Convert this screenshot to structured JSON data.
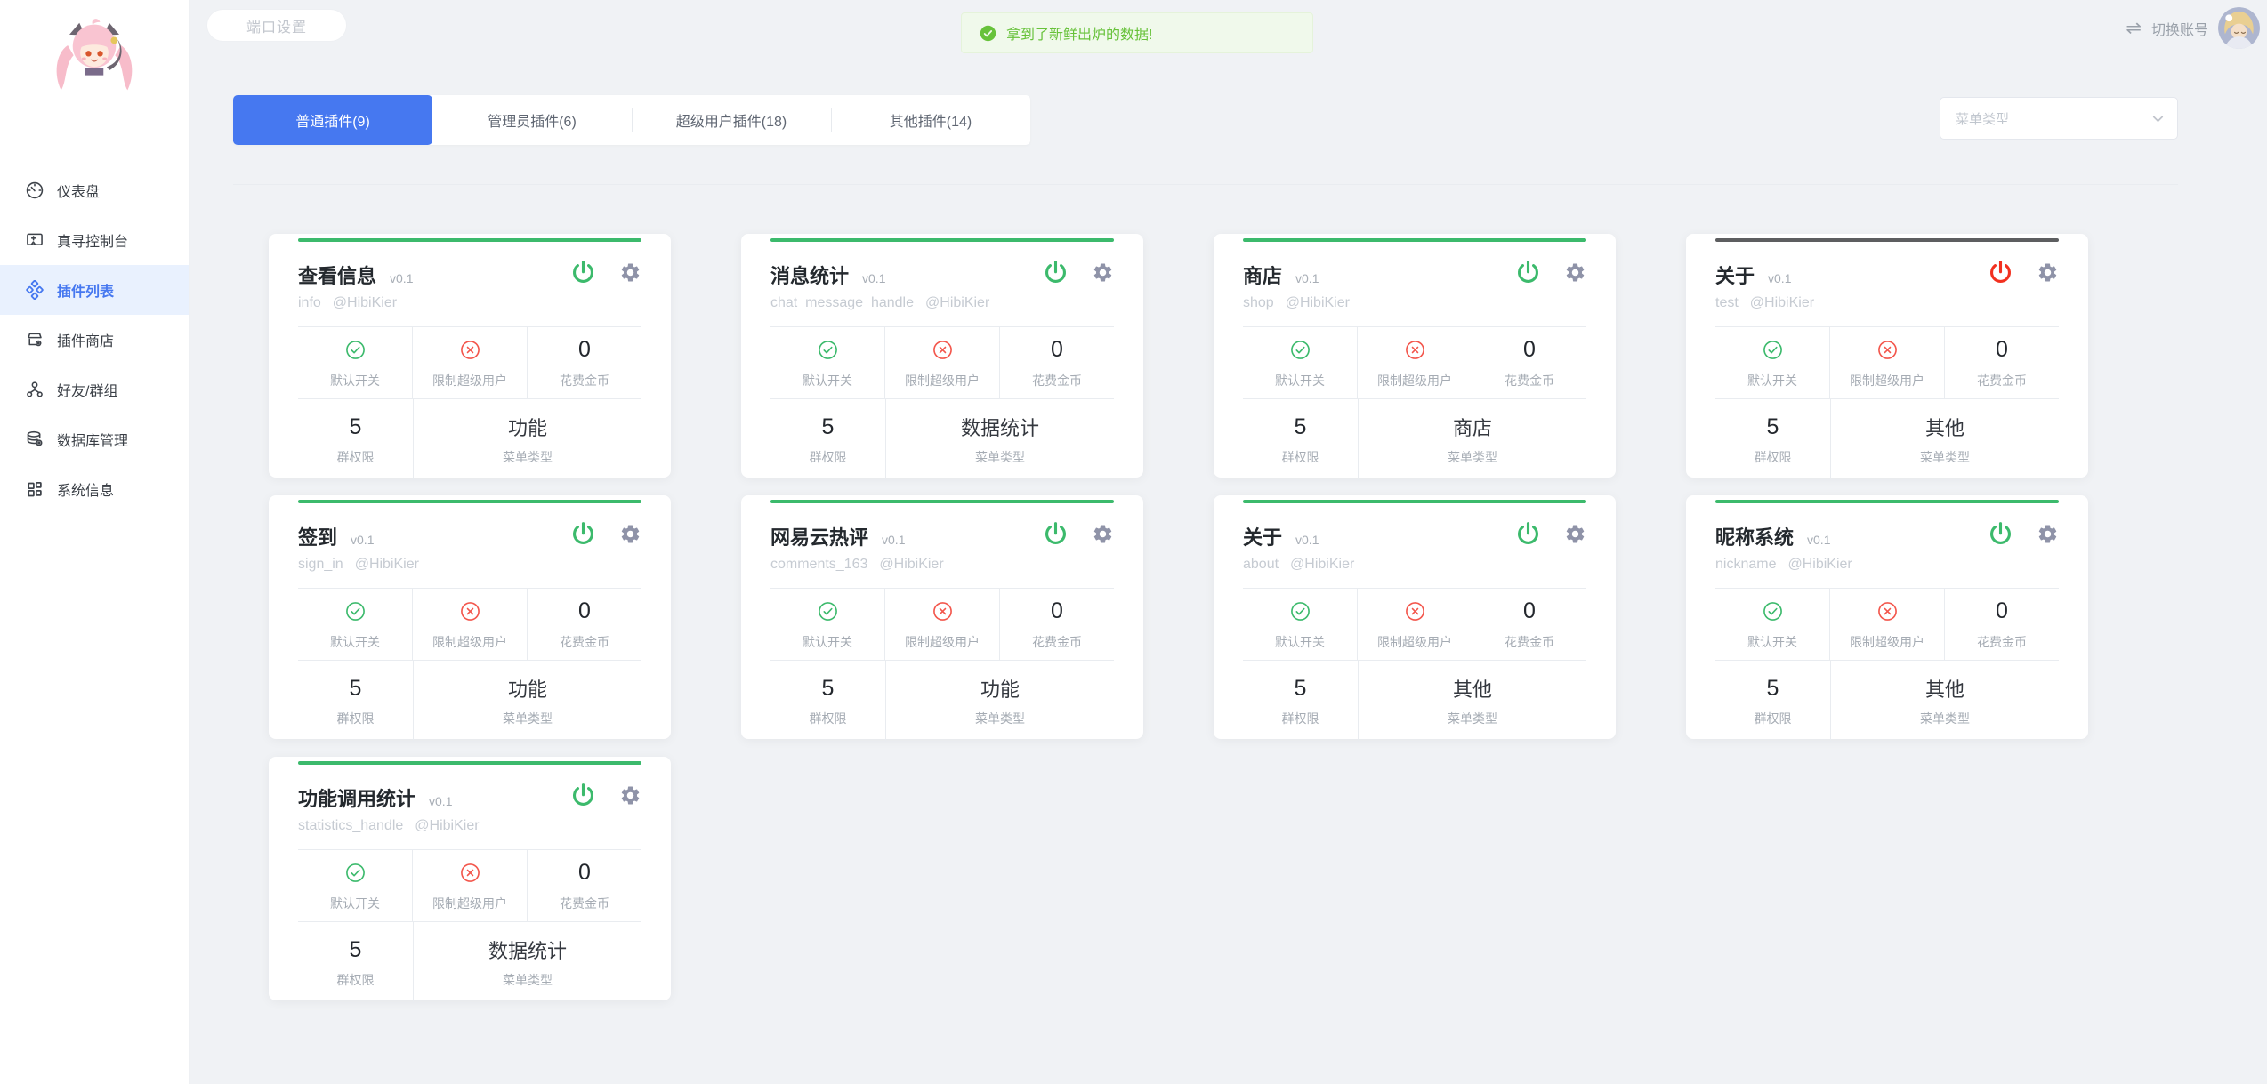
{
  "colors": {
    "primary": "#4678f0",
    "success_power": "#3cba6c",
    "danger_power": "#f2301f",
    "toast_green": "#67c23a",
    "dark_accent": "#5d5e60"
  },
  "sidebar": {
    "items": [
      {
        "key": "dashboard",
        "icon": "gauge-icon",
        "label": "仪表盘",
        "active": false
      },
      {
        "key": "zhenxun-console",
        "icon": "console-icon",
        "label": "真寻控制台",
        "active": false
      },
      {
        "key": "plugin-list",
        "icon": "plugins-icon",
        "label": "插件列表",
        "active": true
      },
      {
        "key": "plugin-store",
        "icon": "store-icon",
        "label": "插件商店",
        "active": false
      },
      {
        "key": "friends-groups",
        "icon": "friends-groups-icon",
        "label": "好友/群组",
        "active": false
      },
      {
        "key": "database-manage",
        "icon": "database-icon",
        "label": "数据库管理",
        "active": false
      },
      {
        "key": "system-info",
        "icon": "grid-icon",
        "label": "系统信息",
        "active": false
      }
    ]
  },
  "topbar": {
    "port_button_label": "端口设置",
    "toast_message": "拿到了新鲜出炉的数据!",
    "switch_account_label": "切换账号"
  },
  "tabs": [
    {
      "key": "normal",
      "label": "普通插件(9)",
      "active": true
    },
    {
      "key": "admin",
      "label": "管理员插件(6)",
      "active": false
    },
    {
      "key": "superuser",
      "label": "超级用户插件(18)",
      "active": false
    },
    {
      "key": "other",
      "label": "其他插件(14)",
      "active": false
    }
  ],
  "filter": {
    "menu_type_placeholder": "菜单类型"
  },
  "card_labels": {
    "default_switch": "默认开关",
    "limit_superuser": "限制超级用户",
    "cost_gold": "花费金币",
    "group_permission": "群权限",
    "menu_type": "菜单类型"
  },
  "plugins": [
    {
      "title": "查看信息",
      "version": "v0.1",
      "module": "info",
      "author": "@HibiKier",
      "enabled": true,
      "accent": "green",
      "cost_gold": "0",
      "group_permission": "5",
      "menu_type": "功能"
    },
    {
      "title": "消息统计",
      "version": "v0.1",
      "module": "chat_message_handle",
      "author": "@HibiKier",
      "enabled": true,
      "accent": "green",
      "cost_gold": "0",
      "group_permission": "5",
      "menu_type": "数据统计"
    },
    {
      "title": "商店",
      "version": "v0.1",
      "module": "shop",
      "author": "@HibiKier",
      "enabled": true,
      "accent": "green",
      "cost_gold": "0",
      "group_permission": "5",
      "menu_type": "商店"
    },
    {
      "title": "关于",
      "version": "v0.1",
      "module": "test",
      "author": "@HibiKier",
      "enabled": false,
      "accent": "dark",
      "cost_gold": "0",
      "group_permission": "5",
      "menu_type": "其他"
    },
    {
      "title": "签到",
      "version": "v0.1",
      "module": "sign_in",
      "author": "@HibiKier",
      "enabled": true,
      "accent": "green",
      "cost_gold": "0",
      "group_permission": "5",
      "menu_type": "功能"
    },
    {
      "title": "网易云热评",
      "version": "v0.1",
      "module": "comments_163",
      "author": "@HibiKier",
      "enabled": true,
      "accent": "green",
      "cost_gold": "0",
      "group_permission": "5",
      "menu_type": "功能"
    },
    {
      "title": "关于",
      "version": "v0.1",
      "module": "about",
      "author": "@HibiKier",
      "enabled": true,
      "accent": "green",
      "cost_gold": "0",
      "group_permission": "5",
      "menu_type": "其他"
    },
    {
      "title": "昵称系统",
      "version": "v0.1",
      "module": "nickname",
      "author": "@HibiKier",
      "enabled": true,
      "accent": "green",
      "cost_gold": "0",
      "group_permission": "5",
      "menu_type": "其他"
    },
    {
      "title": "功能调用统计",
      "version": "v0.1",
      "module": "statistics_handle",
      "author": "@HibiKier",
      "enabled": true,
      "accent": "green",
      "cost_gold": "0",
      "group_permission": "5",
      "menu_type": "数据统计"
    }
  ]
}
